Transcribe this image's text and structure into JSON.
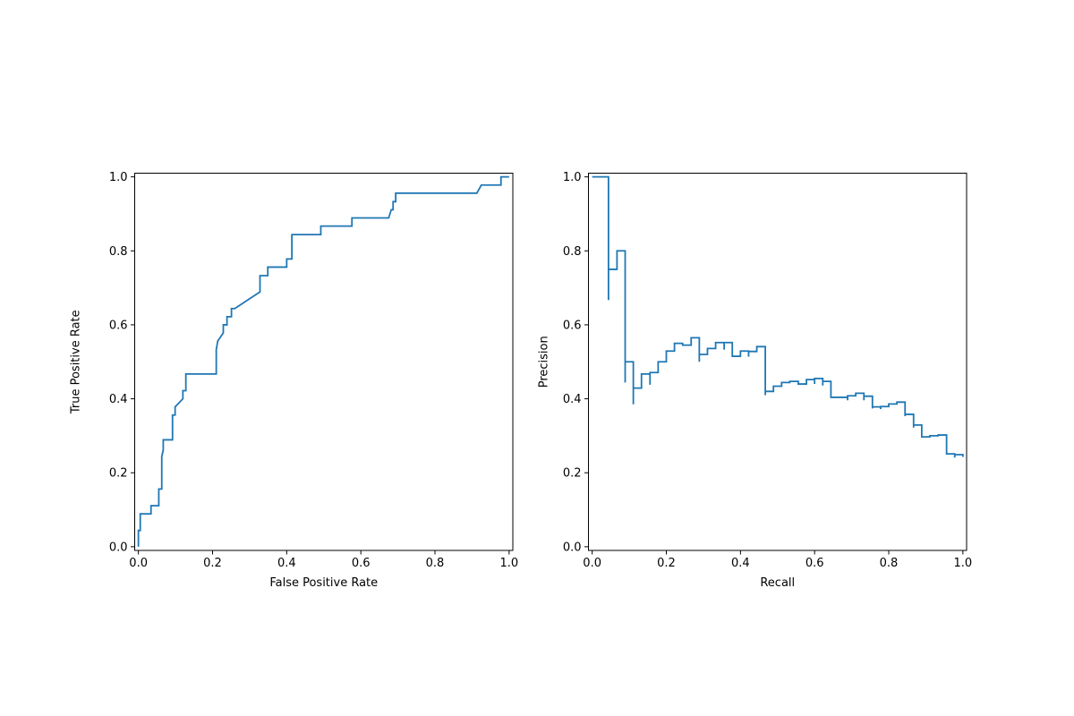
{
  "chart_data": [
    {
      "type": "line",
      "title": "",
      "xlabel": "False Positive Rate",
      "ylabel": "True Positive Rate",
      "xlim": [
        -0.01,
        1.01
      ],
      "ylim": [
        -0.01,
        1.01
      ],
      "xticks": [
        "0.0",
        "0.2",
        "0.4",
        "0.6",
        "0.8",
        "1.0"
      ],
      "yticks": [
        "0.0",
        "0.2",
        "0.4",
        "0.6",
        "0.8",
        "1.0"
      ],
      "grid": false,
      "color": "#1f77b4",
      "points": [
        [
          0,
          0
        ],
        [
          0,
          0.044
        ],
        [
          0.005,
          0.044
        ],
        [
          0.005,
          0.089
        ],
        [
          0.034,
          0.089
        ],
        [
          0.034,
          0.111
        ],
        [
          0.055,
          0.111
        ],
        [
          0.055,
          0.156
        ],
        [
          0.063,
          0.156
        ],
        [
          0.063,
          0.244
        ],
        [
          0.067,
          0.261
        ],
        [
          0.067,
          0.289
        ],
        [
          0.092,
          0.289
        ],
        [
          0.092,
          0.356
        ],
        [
          0.099,
          0.356
        ],
        [
          0.099,
          0.378
        ],
        [
          0.12,
          0.4
        ],
        [
          0.12,
          0.422
        ],
        [
          0.128,
          0.422
        ],
        [
          0.128,
          0.467
        ],
        [
          0.21,
          0.467
        ],
        [
          0.21,
          0.533
        ],
        [
          0.214,
          0.556
        ],
        [
          0.229,
          0.578
        ],
        [
          0.229,
          0.6
        ],
        [
          0.239,
          0.6
        ],
        [
          0.239,
          0.622
        ],
        [
          0.251,
          0.622
        ],
        [
          0.251,
          0.644
        ],
        [
          0.26,
          0.644
        ],
        [
          0.328,
          0.689
        ],
        [
          0.328,
          0.733
        ],
        [
          0.349,
          0.733
        ],
        [
          0.349,
          0.756
        ],
        [
          0.4,
          0.756
        ],
        [
          0.4,
          0.778
        ],
        [
          0.414,
          0.778
        ],
        [
          0.414,
          0.844
        ],
        [
          0.492,
          0.844
        ],
        [
          0.492,
          0.867
        ],
        [
          0.576,
          0.867
        ],
        [
          0.576,
          0.889
        ],
        [
          0.675,
          0.889
        ],
        [
          0.682,
          0.911
        ],
        [
          0.687,
          0.911
        ],
        [
          0.687,
          0.933
        ],
        [
          0.694,
          0.933
        ],
        [
          0.694,
          0.956
        ],
        [
          0.913,
          0.956
        ],
        [
          0.925,
          0.978
        ],
        [
          0.978,
          0.978
        ],
        [
          0.978,
          1
        ],
        [
          1,
          1
        ]
      ]
    },
    {
      "type": "line",
      "title": "",
      "xlabel": "Recall",
      "ylabel": "Precision",
      "xlim": [
        -0.01,
        1.01
      ],
      "ylim": [
        -0.01,
        1.01
      ],
      "xticks": [
        "0.0",
        "0.2",
        "0.4",
        "0.6",
        "0.8",
        "1.0"
      ],
      "yticks": [
        "0.0",
        "0.2",
        "0.4",
        "0.6",
        "0.8",
        "1.0"
      ],
      "grid": false,
      "color": "#1f77b4",
      "points": [
        [
          0,
          1
        ],
        [
          0.044,
          1
        ],
        [
          0.044,
          0.667
        ],
        [
          0.044,
          0.75
        ],
        [
          0.067,
          0.75
        ],
        [
          0.067,
          0.8
        ],
        [
          0.089,
          0.8
        ],
        [
          0.089,
          0.444
        ],
        [
          0.089,
          0.5
        ],
        [
          0.111,
          0.5
        ],
        [
          0.111,
          0.385
        ],
        [
          0.111,
          0.429
        ],
        [
          0.133,
          0.429
        ],
        [
          0.133,
          0.467
        ],
        [
          0.156,
          0.467
        ],
        [
          0.156,
          0.438
        ],
        [
          0.156,
          0.471
        ],
        [
          0.178,
          0.471
        ],
        [
          0.178,
          0.5
        ],
        [
          0.2,
          0.5
        ],
        [
          0.2,
          0.529
        ],
        [
          0.222,
          0.529
        ],
        [
          0.222,
          0.55
        ],
        [
          0.244,
          0.55
        ],
        [
          0.244,
          0.545
        ],
        [
          0.267,
          0.545
        ],
        [
          0.267,
          0.565
        ],
        [
          0.289,
          0.565
        ],
        [
          0.289,
          0.5
        ],
        [
          0.289,
          0.52
        ],
        [
          0.311,
          0.52
        ],
        [
          0.311,
          0.536
        ],
        [
          0.333,
          0.536
        ],
        [
          0.333,
          0.552
        ],
        [
          0.356,
          0.552
        ],
        [
          0.356,
          0.533
        ],
        [
          0.356,
          0.552
        ],
        [
          0.378,
          0.552
        ],
        [
          0.378,
          0.515
        ],
        [
          0.4,
          0.515
        ],
        [
          0.4,
          0.529
        ],
        [
          0.422,
          0.529
        ],
        [
          0.422,
          0.514
        ],
        [
          0.422,
          0.528
        ],
        [
          0.444,
          0.528
        ],
        [
          0.444,
          0.541
        ],
        [
          0.467,
          0.541
        ],
        [
          0.467,
          0.41
        ],
        [
          0.467,
          0.42
        ],
        [
          0.489,
          0.42
        ],
        [
          0.489,
          0.434
        ],
        [
          0.511,
          0.434
        ],
        [
          0.511,
          0.444
        ],
        [
          0.533,
          0.444
        ],
        [
          0.533,
          0.447
        ],
        [
          0.556,
          0.447
        ],
        [
          0.556,
          0.44
        ],
        [
          0.578,
          0.44
        ],
        [
          0.578,
          0.452
        ],
        [
          0.6,
          0.452
        ],
        [
          0.6,
          0.44
        ],
        [
          0.6,
          0.455
        ],
        [
          0.622,
          0.455
        ],
        [
          0.622,
          0.436
        ],
        [
          0.622,
          0.447
        ],
        [
          0.644,
          0.447
        ],
        [
          0.644,
          0.404
        ],
        [
          0.689,
          0.404
        ],
        [
          0.689,
          0.396
        ],
        [
          0.689,
          0.408
        ],
        [
          0.711,
          0.408
        ],
        [
          0.711,
          0.415
        ],
        [
          0.733,
          0.415
        ],
        [
          0.733,
          0.396
        ],
        [
          0.733,
          0.407
        ],
        [
          0.756,
          0.407
        ],
        [
          0.756,
          0.374
        ],
        [
          0.756,
          0.378
        ],
        [
          0.778,
          0.378
        ],
        [
          0.778,
          0.372
        ],
        [
          0.778,
          0.379
        ],
        [
          0.8,
          0.379
        ],
        [
          0.8,
          0.386
        ],
        [
          0.822,
          0.386
        ],
        [
          0.822,
          0.391
        ],
        [
          0.844,
          0.391
        ],
        [
          0.844,
          0.353
        ],
        [
          0.844,
          0.358
        ],
        [
          0.867,
          0.358
        ],
        [
          0.867,
          0.322
        ],
        [
          0.867,
          0.329
        ],
        [
          0.889,
          0.329
        ],
        [
          0.889,
          0.297
        ],
        [
          0.911,
          0.297
        ],
        [
          0.911,
          0.295
        ],
        [
          0.911,
          0.3
        ],
        [
          0.933,
          0.3
        ],
        [
          0.933,
          0.298
        ],
        [
          0.933,
          0.302
        ],
        [
          0.956,
          0.302
        ],
        [
          0.956,
          0.251
        ],
        [
          0.978,
          0.251
        ],
        [
          0.978,
          0.241
        ],
        [
          0.978,
          0.249
        ],
        [
          1,
          0.249
        ],
        [
          1,
          0.243
        ]
      ]
    }
  ]
}
